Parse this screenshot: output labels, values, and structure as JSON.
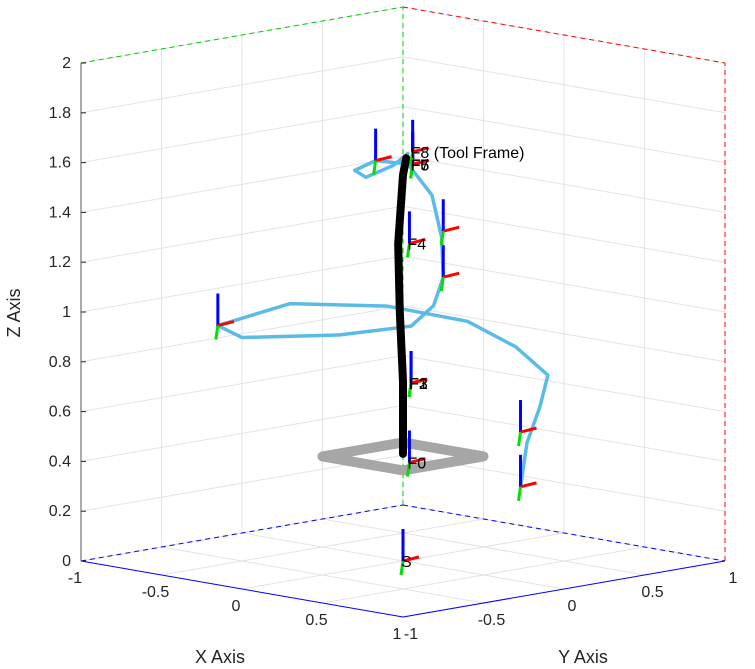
{
  "chart_data": {
    "type": "3d-line",
    "xlabel": "X Axis",
    "ylabel": "Y Axis",
    "zlabel": "Z Axis",
    "xlim": [
      -1,
      1
    ],
    "ylim": [
      -1,
      1
    ],
    "zlim": [
      0,
      2
    ],
    "x_ticks": [
      {
        "v": -1,
        "label": "-1"
      },
      {
        "v": -0.5,
        "label": "-0.5"
      },
      {
        "v": 0,
        "label": "0"
      },
      {
        "v": 0.5,
        "label": "0.5"
      },
      {
        "v": 1,
        "label": "1"
      }
    ],
    "y_ticks": [
      {
        "v": -1,
        "label": "-1"
      },
      {
        "v": -0.5,
        "label": "-0.5"
      },
      {
        "v": 0,
        "label": "0"
      },
      {
        "v": 0.5,
        "label": "0.5"
      },
      {
        "v": 1,
        "label": "1"
      }
    ],
    "z_ticks": [
      {
        "v": 0,
        "label": "0"
      },
      {
        "v": 0.2,
        "label": "0.2"
      },
      {
        "v": 0.4,
        "label": "0.4"
      },
      {
        "v": 0.6,
        "label": "0.6"
      },
      {
        "v": 0.8,
        "label": "0.8"
      },
      {
        "v": 1,
        "label": "1"
      },
      {
        "v": 1.2,
        "label": "1.2"
      },
      {
        "v": 1.4,
        "label": "1.4"
      },
      {
        "v": 1.6,
        "label": "1.6"
      },
      {
        "v": 1.8,
        "label": "1.8"
      },
      {
        "v": 2,
        "label": "2"
      }
    ],
    "grid": true,
    "colors": {
      "trajectory": "#5bbbe8",
      "robot": "#000000",
      "base_plate": "#a6a6a6",
      "frame_x": "#ff0000",
      "frame_y": "#00e000",
      "frame_z": "#0000ff",
      "box_x_edge": "#ff0000",
      "box_y_edge": "#00cc00",
      "box_z_edge": "#0000ff"
    },
    "robot_arm": [
      [
        0,
        0,
        0.43
      ],
      [
        0,
        0,
        0.65
      ],
      [
        0,
        0,
        0.72
      ],
      [
        -0.02,
        0,
        1.0
      ],
      [
        -0.03,
        0,
        1.27
      ],
      [
        0,
        0,
        1.55
      ],
      [
        0.02,
        0,
        1.62
      ]
    ],
    "trajectory": [
      [
        0.73,
        0.0,
        0.38
      ],
      [
        0.72,
        0.05,
        0.55
      ],
      [
        0.7,
        0.15,
        0.68
      ],
      [
        0.6,
        0.3,
        0.78
      ],
      [
        0.35,
        0.35,
        0.86
      ],
      [
        0.1,
        0.3,
        0.94
      ],
      [
        -0.2,
        0.1,
        0.99
      ],
      [
        -0.5,
        -0.2,
        1.0
      ],
      [
        -0.6,
        -0.55,
        0.94
      ],
      [
        -0.4,
        -0.6,
        0.92
      ],
      [
        -0.1,
        -0.3,
        0.93
      ],
      [
        0.1,
        -0.05,
        0.96
      ],
      [
        0.16,
        0.03,
        1.04
      ],
      [
        0.17,
        0.08,
        1.15
      ],
      [
        0.12,
        0.12,
        1.3
      ],
      [
        0.05,
        0.13,
        1.46
      ],
      [
        -0.05,
        0.08,
        1.58
      ],
      [
        -0.12,
        -0.05,
        1.6
      ],
      [
        -0.1,
        -0.2,
        1.58
      ],
      [
        -0.03,
        -0.2,
        1.56
      ],
      [
        0.02,
        -0.08,
        1.6
      ],
      [
        0.03,
        0.0,
        1.64
      ]
    ],
    "frames": [
      {
        "label": "F0",
        "pos": [
          0.04,
          0.0,
          0.4
        ]
      },
      {
        "label": "F1",
        "pos": [
          0.05,
          0.0,
          0.72
        ]
      },
      {
        "label": "F2",
        "pos": [
          0.05,
          0.0,
          0.72
        ]
      },
      {
        "label": "F3",
        "pos": [
          0.05,
          0.0,
          0.72
        ]
      },
      {
        "label": "F4",
        "pos": [
          0.04,
          0.0,
          1.28
        ]
      },
      {
        "label": "F5",
        "pos": [
          0.06,
          0.0,
          1.6
        ]
      },
      {
        "label": "F6",
        "pos": [
          0.06,
          0.0,
          1.6
        ]
      },
      {
        "label": "F7",
        "pos": [
          0.06,
          0.0,
          1.6
        ]
      },
      {
        "label": "F8 (Tool Frame)",
        "pos": [
          0.06,
          0.0,
          1.65
        ]
      },
      {
        "label": "S",
        "pos": [
          0.0,
          0.0,
          0.0
        ]
      }
    ],
    "trajectory_frames": [
      [
        -0.6,
        -0.55,
        0.94
      ],
      [
        0.73,
        0.0,
        0.38
      ],
      [
        0.73,
        0.0,
        0.6
      ],
      [
        0.17,
        0.08,
        1.15
      ],
      [
        0.15,
        0.1,
        1.33
      ],
      [
        -0.12,
        -0.05,
        1.6
      ]
    ],
    "base_plate": {
      "half_size": 0.25,
      "z": 0.42
    }
  }
}
